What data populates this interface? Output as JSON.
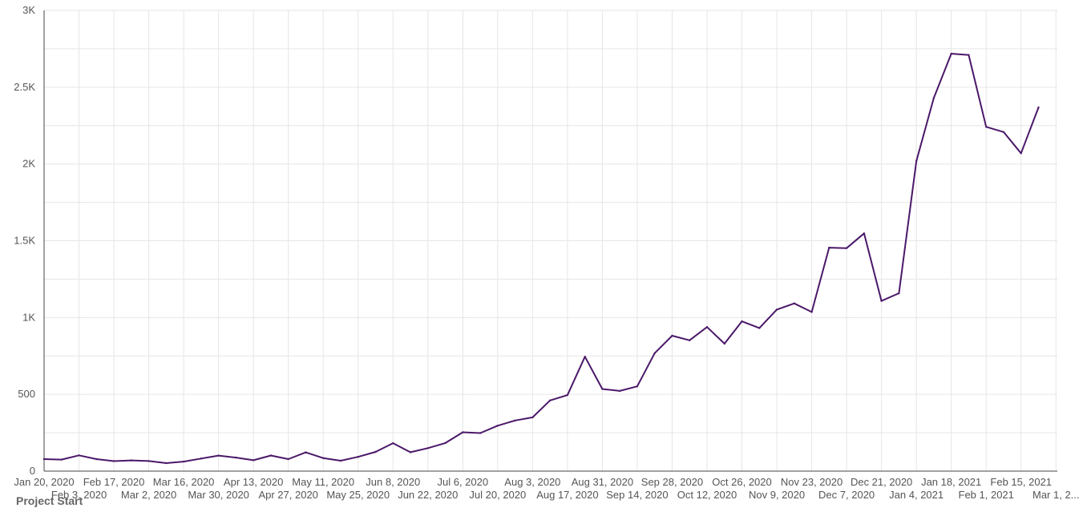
{
  "colors": {
    "line": "#4b1869",
    "grid": "#e6e6e6",
    "axis": "#444444",
    "tick_text": "#555555"
  },
  "chart_data": {
    "type": "line",
    "title": "",
    "xlabel": "Project Start",
    "ylabel": "",
    "ylim": [
      0,
      3000
    ],
    "grid": true,
    "y_ticks": [
      {
        "value": 0,
        "label": "0"
      },
      {
        "value": 500,
        "label": "500"
      },
      {
        "value": 1000,
        "label": "1K"
      },
      {
        "value": 1500,
        "label": "1.5K"
      },
      {
        "value": 2000,
        "label": "2K"
      },
      {
        "value": 2500,
        "label": "2.5K"
      },
      {
        "value": 3000,
        "label": "3K"
      }
    ],
    "x_ticks": [
      "Jan 20, 2020",
      "Feb 3, 2020",
      "Feb 17, 2020",
      "Mar 2, 2020",
      "Mar 16, 2020",
      "Mar 30, 2020",
      "Apr 13, 2020",
      "Apr 27, 2020",
      "May 11, 2020",
      "May 25, 2020",
      "Jun 8, 2020",
      "Jun 22, 2020",
      "Jul 6, 2020",
      "Jul 20, 2020",
      "Aug 3, 2020",
      "Aug 17, 2020",
      "Aug 31, 2020",
      "Sep 14, 2020",
      "Sep 28, 2020",
      "Oct 12, 2020",
      "Oct 26, 2020",
      "Nov 9, 2020",
      "Nov 23, 2020",
      "Dec 7, 2020",
      "Dec 21, 2020",
      "Jan 4, 2021",
      "Jan 18, 2021",
      "Feb 1, 2021",
      "Feb 15, 2021",
      "Mar 1, 2..."
    ],
    "x": [
      "Jan 20, 2020",
      "Jan 27, 2020",
      "Feb 3, 2020",
      "Feb 10, 2020",
      "Feb 17, 2020",
      "Feb 24, 2020",
      "Mar 2, 2020",
      "Mar 9, 2020",
      "Mar 16, 2020",
      "Mar 23, 2020",
      "Mar 30, 2020",
      "Apr 6, 2020",
      "Apr 13, 2020",
      "Apr 20, 2020",
      "Apr 27, 2020",
      "May 4, 2020",
      "May 11, 2020",
      "May 18, 2020",
      "May 25, 2020",
      "Jun 1, 2020",
      "Jun 8, 2020",
      "Jun 15, 2020",
      "Jun 22, 2020",
      "Jun 29, 2020",
      "Jul 6, 2020",
      "Jul 13, 2020",
      "Jul 20, 2020",
      "Jul 27, 2020",
      "Aug 3, 2020",
      "Aug 10, 2020",
      "Aug 17, 2020",
      "Aug 24, 2020",
      "Aug 31, 2020",
      "Sep 7, 2020",
      "Sep 14, 2020",
      "Sep 21, 2020",
      "Sep 28, 2020",
      "Oct 5, 2020",
      "Oct 12, 2020",
      "Oct 19, 2020",
      "Oct 26, 2020",
      "Nov 2, 2020",
      "Nov 9, 2020",
      "Nov 16, 2020",
      "Nov 23, 2020",
      "Nov 30, 2020",
      "Dec 7, 2020",
      "Dec 14, 2020",
      "Dec 21, 2020",
      "Dec 28, 2020",
      "Jan 4, 2021",
      "Jan 11, 2021",
      "Jan 18, 2021",
      "Jan 25, 2021",
      "Feb 1, 2021",
      "Feb 8, 2021",
      "Feb 15, 2021",
      "Feb 22, 2021"
    ],
    "series": [
      {
        "values": [
          78,
          75,
          103,
          78,
          65,
          70,
          66,
          52,
          62,
          82,
          101,
          88,
          71,
          102,
          78,
          122,
          85,
          68,
          93,
          125,
          182,
          123,
          150,
          183,
          253,
          248,
          296,
          330,
          350,
          460,
          495,
          745,
          535,
          522,
          552,
          768,
          882,
          852,
          938,
          830,
          975,
          932,
          1052,
          1092,
          1036,
          1455,
          1452,
          1548,
          1108,
          1158,
          2020,
          2430,
          2718,
          2710,
          2242,
          2208,
          2070,
          2368
        ]
      }
    ]
  }
}
